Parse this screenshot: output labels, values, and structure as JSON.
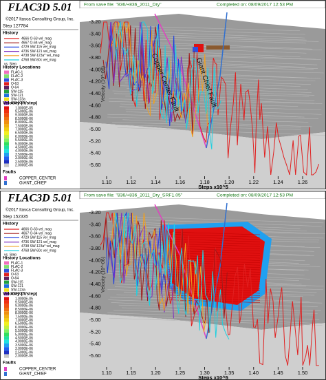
{
  "panels": [
    {
      "legend": {
        "title": "FLAC3D 5.01",
        "copyright": "©2017 Itasca Consulting Group, Inc.",
        "step": "Step 127784",
        "history_heading": "History",
        "histories": [
          {
            "label": "4666 O-63 vel_mag",
            "color": "#e02020"
          },
          {
            "label": "4667 O-64 vel_mag",
            "color": "#a01818"
          },
          {
            "label": "4729 SW-115 vel_mag",
            "color": "#2040e0"
          },
          {
            "label": "4736 SW-121 vel_mag",
            "color": "#8030c0"
          },
          {
            "label": "4738 SW-123a* vel_mag",
            "color": "#f0a020"
          },
          {
            "label": "4768 SW-60c vel_mag",
            "color": "#20d0e0"
          }
        ],
        "vs": "vs. Step",
        "locations_heading": "History Locations",
        "locations": [
          {
            "label": "FLAC-1",
            "color": "#f070c0"
          },
          {
            "label": "FLAC-2",
            "color": "#80e070"
          },
          {
            "label": "FLAC-3",
            "color": "#3050e0"
          },
          {
            "label": "O-63",
            "color": "#e02020"
          },
          {
            "label": "O-64",
            "color": "#602060"
          },
          {
            "label": "SW-115",
            "color": "#20a040"
          },
          {
            "label": "SW-121",
            "color": "#2070e0"
          },
          {
            "label": "SW-123a",
            "color": "#f0e020"
          },
          {
            "label": "SW-60c",
            "color": "#9040d0"
          }
        ],
        "velocity_heading": "Velocity (ft/step)",
        "velocity": [
          {
            "label": "1.0000E-05",
            "color": "#e01010"
          },
          {
            "label": "9.5000E-06",
            "color": "#f03010"
          },
          {
            "label": "9.0000E-06",
            "color": "#f05010"
          },
          {
            "label": "8.5000E-06",
            "color": "#f07010"
          },
          {
            "label": "8.0000E-06",
            "color": "#f09010"
          },
          {
            "label": "7.5000E-06",
            "color": "#f0b010"
          },
          {
            "label": "7.0000E-06",
            "color": "#f0d010"
          },
          {
            "label": "6.5000E-06",
            "color": "#f0f020"
          },
          {
            "label": "6.0000E-06",
            "color": "#c0f040"
          },
          {
            "label": "5.5000E-06",
            "color": "#80f060"
          },
          {
            "label": "5.0000E-06",
            "color": "#30e060"
          },
          {
            "label": "4.5000E-06",
            "color": "#20e0a0"
          },
          {
            "label": "4.0000E-06",
            "color": "#20e0e0"
          },
          {
            "label": "3.5000E-06",
            "color": "#20a0f0"
          },
          {
            "label": "3.0000E-06",
            "color": "#2060f0"
          },
          {
            "label": "2.5000E-06",
            "color": "#2030c0"
          },
          {
            "label": "2.0000E-06",
            "color": "#c8c8c8"
          }
        ],
        "faults_heading": "Faults",
        "faults": [
          {
            "label": "COPPER_CENTER",
            "color": "#e040c0"
          },
          {
            "label": "GIANT_CHIEF",
            "color": "#3070d0"
          }
        ]
      },
      "header": {
        "source": "From save file: \"836/+836_2011_Dry\"",
        "completed": "Completed on: 08/09/2017 12:53 PM"
      },
      "plot": {
        "y_label": "Velocity (10^-06)",
        "yticks": [
          "-3.20",
          "-3.40",
          "-3.60",
          "-3.80",
          "-4.00",
          "-4.20",
          "-4.40",
          "-4.60",
          "-4.80",
          "-5.00",
          "-5.20",
          "-5.40",
          "-5.60"
        ],
        "x_label": "Steps x10^5",
        "xticks": [
          "1.10",
          "1.12",
          "1.14",
          "1.16",
          "1.18",
          "1.20",
          "1.22",
          "1.24",
          "1.26"
        ],
        "annotations": [
          "Copper Center Fault",
          "Giant Chief Fault"
        ]
      }
    },
    {
      "legend": {
        "title": "FLAC3D 5.01",
        "copyright": "©2017 Itasca Consulting Group, Inc.",
        "step": "Step 152335",
        "history_heading": "History",
        "histories": [
          {
            "label": "4666 O-63 vel_mag",
            "color": "#e02020"
          },
          {
            "label": "4667 O-64 vel_mag",
            "color": "#a01818"
          },
          {
            "label": "4729 SW-115 vel_mag",
            "color": "#2040e0"
          },
          {
            "label": "4736 SW-121 vel_mag",
            "color": "#8030c0"
          },
          {
            "label": "4738 SW-123a* vel_mag",
            "color": "#f0a020"
          },
          {
            "label": "4768 SW-60c vel_mag",
            "color": "#20d0e0"
          }
        ],
        "vs": "vs. Step",
        "locations_heading": "History Locations",
        "locations": [
          {
            "label": "FLAC-1",
            "color": "#f070c0"
          },
          {
            "label": "FLAC-2",
            "color": "#80e070"
          },
          {
            "label": "FLAC-3",
            "color": "#3050e0"
          },
          {
            "label": "O-63",
            "color": "#e02020"
          },
          {
            "label": "O-64",
            "color": "#602060"
          },
          {
            "label": "SW-115",
            "color": "#20a040"
          },
          {
            "label": "SW-121",
            "color": "#2070e0"
          },
          {
            "label": "SW-123a",
            "color": "#f0e020"
          },
          {
            "label": "SW-60c",
            "color": "#9040d0"
          }
        ],
        "velocity_heading": "Velocity (ft/step)",
        "velocity": [
          {
            "label": "1.0000E-05",
            "color": "#e01010"
          },
          {
            "label": "9.5000E-06",
            "color": "#f03010"
          },
          {
            "label": "9.0000E-06",
            "color": "#f05010"
          },
          {
            "label": "8.5000E-06",
            "color": "#f07010"
          },
          {
            "label": "8.0000E-06",
            "color": "#f09010"
          },
          {
            "label": "7.5000E-06",
            "color": "#f0b010"
          },
          {
            "label": "7.0000E-06",
            "color": "#f0d010"
          },
          {
            "label": "6.5000E-06",
            "color": "#f0f020"
          },
          {
            "label": "6.0000E-06",
            "color": "#c0f040"
          },
          {
            "label": "5.5000E-06",
            "color": "#80f060"
          },
          {
            "label": "5.0000E-06",
            "color": "#30e060"
          },
          {
            "label": "4.5000E-06",
            "color": "#20e0a0"
          },
          {
            "label": "4.0000E-06",
            "color": "#20e0e0"
          },
          {
            "label": "3.5000E-06",
            "color": "#20a0f0"
          },
          {
            "label": "3.0000E-06",
            "color": "#2060f0"
          },
          {
            "label": "2.5000E-06",
            "color": "#2030c0"
          },
          {
            "label": "2.0000E-06",
            "color": "#c8c8c8"
          }
        ],
        "faults_heading": "Faults",
        "faults": [
          {
            "label": "COPPER_CENTER",
            "color": "#e040c0"
          },
          {
            "label": "GIANT_CHIEF",
            "color": "#3070d0"
          }
        ]
      },
      "header": {
        "source": "From save file: \"836/+836_2011_Dry_SRF1.05\"",
        "completed": "Completed on: 08/09/2017 12:53 PM"
      },
      "plot": {
        "y_label": "Velocity (10^-06)",
        "yticks": [
          "-3.20",
          "-3.40",
          "-3.60",
          "-3.80",
          "-4.00",
          "-4.20",
          "-4.40",
          "-4.60",
          "-4.80",
          "-5.00",
          "-5.20",
          "-5.40",
          "-5.60"
        ],
        "x_label": "Steps x10^5",
        "xticks": [
          "1.10",
          "1.15",
          "1.20",
          "1.25",
          "1.30",
          "1.35",
          "1.40",
          "1.45",
          "1.50"
        ],
        "annotations": []
      }
    }
  ]
}
